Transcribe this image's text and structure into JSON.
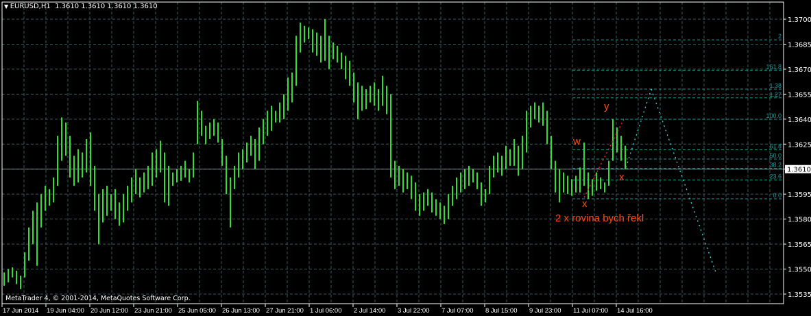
{
  "header": {
    "symbol": "EURUSD,H1",
    "ohlc": "1.3610 1.3610 1.3610 1.3610"
  },
  "watermark": "MetaTrader 4, © 2001-2014, MetaQuotes Software Corp.",
  "annotations": {
    "w": "w",
    "x1": "x",
    "y": "y",
    "x2": "x",
    "comment": "2 x rovina bych řekl"
  },
  "colors": {
    "background": "#000000",
    "bars": "#33dd33",
    "grid": "#3d5a5a",
    "fib": "#1a9a9a",
    "projection": "#40e0e0",
    "annotation": "#ff4a12",
    "trend": "#ff2020",
    "axis": "#ffffff"
  },
  "chart_data": {
    "type": "bar",
    "symbol": "EURUSD",
    "timeframe": "H1",
    "ylim": [
      1.3535,
      1.37
    ],
    "grid": true,
    "current_price": "1.3610",
    "y_ticks": [
      "1.3700",
      "1.3685",
      "1.3670",
      "1.3655",
      "1.3640",
      "1.3625",
      "1.3610",
      "1.3595",
      "1.3580",
      "1.3565",
      "1.3550",
      "1.3535"
    ],
    "x_ticks": [
      "17 Jun 2014",
      "19 Jun 04:00",
      "20 Jun 12:00",
      "23 Jun 21:00",
      "25 Jun 05:00",
      "26 Jun 13:00",
      "27 Jun 21:00",
      "1 Jul 06:00",
      "2 Jul 14:00",
      "3 Jul 22:00",
      "7 Jul 07:00",
      "8 Jul 15:00",
      "9 Jul 23:00",
      "11 Jul 07:00",
      "14 Jul 16:00"
    ],
    "bars_high_low": [
      [
        1.3548,
        1.354
      ],
      [
        1.355,
        1.3542
      ],
      [
        1.3551,
        1.3545
      ],
      [
        1.3549,
        1.3541
      ],
      [
        1.3546,
        1.3538
      ],
      [
        1.356,
        1.3545
      ],
      [
        1.3575,
        1.3555
      ],
      [
        1.3585,
        1.3565
      ],
      [
        1.359,
        1.3552
      ],
      [
        1.3595,
        1.3575
      ],
      [
        1.36,
        1.3585
      ],
      [
        1.3598,
        1.3588
      ],
      [
        1.3605,
        1.359
      ],
      [
        1.363,
        1.36
      ],
      [
        1.3641,
        1.3615
      ],
      [
        1.3638,
        1.3618
      ],
      [
        1.363,
        1.3605
      ],
      [
        1.3618,
        1.36
      ],
      [
        1.3622,
        1.3602
      ],
      [
        1.362,
        1.3605
      ],
      [
        1.3628,
        1.3608
      ],
      [
        1.3632,
        1.36
      ],
      [
        1.3612,
        1.3585
      ],
      [
        1.3595,
        1.3565
      ],
      [
        1.3598,
        1.3578
      ],
      [
        1.36,
        1.3582
      ],
      [
        1.3595,
        1.3585
      ],
      [
        1.3598,
        1.358
      ],
      [
        1.359,
        1.3576
      ],
      [
        1.3595,
        1.3578
      ],
      [
        1.36,
        1.3585
      ],
      [
        1.3605,
        1.359
      ],
      [
        1.361,
        1.3595
      ],
      [
        1.3605,
        1.3593
      ],
      [
        1.3608,
        1.3596
      ],
      [
        1.3612,
        1.3598
      ],
      [
        1.362,
        1.36
      ],
      [
        1.3622,
        1.3605
      ],
      [
        1.3627,
        1.3608
      ],
      [
        1.362,
        1.359
      ],
      [
        1.3612,
        1.3588
      ],
      [
        1.3608,
        1.36
      ],
      [
        1.361,
        1.3602
      ],
      [
        1.3612,
        1.3603
      ],
      [
        1.3615,
        1.3605
      ],
      [
        1.361,
        1.3602
      ],
      [
        1.362,
        1.3605
      ],
      [
        1.3651,
        1.3625
      ],
      [
        1.3645,
        1.363
      ],
      [
        1.3636,
        1.3625
      ],
      [
        1.3638,
        1.3628
      ],
      [
        1.364,
        1.363
      ],
      [
        1.3638,
        1.3626
      ],
      [
        1.3628,
        1.3612
      ],
      [
        1.3618,
        1.3595
      ],
      [
        1.3605,
        1.3575
      ],
      [
        1.3612,
        1.3598
      ],
      [
        1.362,
        1.3605
      ],
      [
        1.3622,
        1.361
      ],
      [
        1.3626,
        1.3614
      ],
      [
        1.363,
        1.3618
      ],
      [
        1.3628,
        1.361
      ],
      [
        1.3635,
        1.3615
      ],
      [
        1.364,
        1.3625
      ],
      [
        1.3645,
        1.363
      ],
      [
        1.3648,
        1.3633
      ],
      [
        1.3645,
        1.3638
      ],
      [
        1.365,
        1.3638
      ],
      [
        1.3655,
        1.364
      ],
      [
        1.3665,
        1.3645
      ],
      [
        1.3668,
        1.365
      ],
      [
        1.369,
        1.366
      ],
      [
        1.3698,
        1.368
      ],
      [
        1.3696,
        1.3686
      ],
      [
        1.3695,
        1.3688
      ],
      [
        1.3694,
        1.368
      ],
      [
        1.3692,
        1.3678
      ],
      [
        1.369,
        1.3674
      ],
      [
        1.37,
        1.3675
      ],
      [
        1.369,
        1.367
      ],
      [
        1.3686,
        1.3676
      ],
      [
        1.3684,
        1.3674
      ],
      [
        1.368,
        1.367
      ],
      [
        1.3678,
        1.3664
      ],
      [
        1.3675,
        1.366
      ],
      [
        1.3668,
        1.365
      ],
      [
        1.3662,
        1.364
      ],
      [
        1.366,
        1.3645
      ],
      [
        1.3658,
        1.3646
      ],
      [
        1.366,
        1.365
      ],
      [
        1.3662,
        1.3648
      ],
      [
        1.3658,
        1.3645
      ],
      [
        1.3666,
        1.3648
      ],
      [
        1.366,
        1.3643
      ],
      [
        1.3655,
        1.3605
      ],
      [
        1.3615,
        1.3598
      ],
      [
        1.3612,
        1.36
      ],
      [
        1.361,
        1.3596
      ],
      [
        1.3608,
        1.3598
      ],
      [
        1.3606,
        1.3592
      ],
      [
        1.3602,
        1.3585
      ],
      [
        1.3595,
        1.3582
      ],
      [
        1.3596,
        1.3585
      ],
      [
        1.3598,
        1.3588
      ],
      [
        1.3596,
        1.3584
      ],
      [
        1.3592,
        1.3582
      ],
      [
        1.359,
        1.358
      ],
      [
        1.3588,
        1.3577
      ],
      [
        1.3595,
        1.358
      ],
      [
        1.36,
        1.3588
      ],
      [
        1.3605,
        1.3592
      ],
      [
        1.3608,
        1.3596
      ],
      [
        1.361,
        1.3598
      ],
      [
        1.3612,
        1.36
      ],
      [
        1.361,
        1.3602
      ],
      [
        1.3608,
        1.3598
      ],
      [
        1.3602,
        1.3588
      ],
      [
        1.3598,
        1.359
      ],
      [
        1.3612,
        1.3595
      ],
      [
        1.3618,
        1.3605
      ],
      [
        1.362,
        1.3608
      ],
      [
        1.3618,
        1.3606
      ],
      [
        1.3624,
        1.361
      ],
      [
        1.3622,
        1.3612
      ],
      [
        1.3628,
        1.3612
      ],
      [
        1.3624,
        1.3606
      ],
      [
        1.363,
        1.361
      ],
      [
        1.3645,
        1.362
      ],
      [
        1.3648,
        1.3635
      ],
      [
        1.365,
        1.364
      ],
      [
        1.3648,
        1.3638
      ],
      [
        1.365,
        1.3636
      ],
      [
        1.3645,
        1.3625
      ],
      [
        1.363,
        1.361
      ],
      [
        1.3615,
        1.3596
      ],
      [
        1.361,
        1.359
      ],
      [
        1.3608,
        1.3596
      ],
      [
        1.3606,
        1.3595
      ],
      [
        1.3604,
        1.3594
      ],
      [
        1.3606,
        1.3596
      ],
      [
        1.3611,
        1.3596
      ],
      [
        1.3626,
        1.36
      ],
      [
        1.3608,
        1.3592
      ],
      [
        1.3604,
        1.3594
      ],
      [
        1.3608,
        1.3597
      ],
      [
        1.3605,
        1.3598
      ],
      [
        1.3602,
        1.3596
      ],
      [
        1.3615,
        1.36
      ],
      [
        1.364,
        1.3615
      ],
      [
        1.3635,
        1.362
      ],
      [
        1.363,
        1.3615
      ],
      [
        1.3624,
        1.361
      ]
    ],
    "fibonacci": {
      "base_price_0": 1.35922,
      "price_100": 1.36399,
      "levels": [
        {
          "label": "0.0",
          "ratio": 0
        },
        {
          "label": "23.6",
          "ratio": 0.236
        },
        {
          "label": "38.2",
          "ratio": 0.382
        },
        {
          "label": "50.0",
          "ratio": 0.5
        },
        {
          "label": "61.8",
          "ratio": 0.618
        },
        {
          "label": "100.0",
          "ratio": 1
        },
        {
          "label": "1.27",
          "ratio": 1.27
        },
        {
          "label": "1.38",
          "ratio": 1.38
        },
        {
          "label": "161.8",
          "ratio": 1.618
        },
        {
          "label": "2",
          "ratio": 2
        }
      ]
    },
    "projection_line": [
      [
        1.3611,
        1.3658
      ],
      [
        1.3658,
        1.3547
      ]
    ],
    "trend_line": [
      1.3593,
      1.364
    ]
  }
}
